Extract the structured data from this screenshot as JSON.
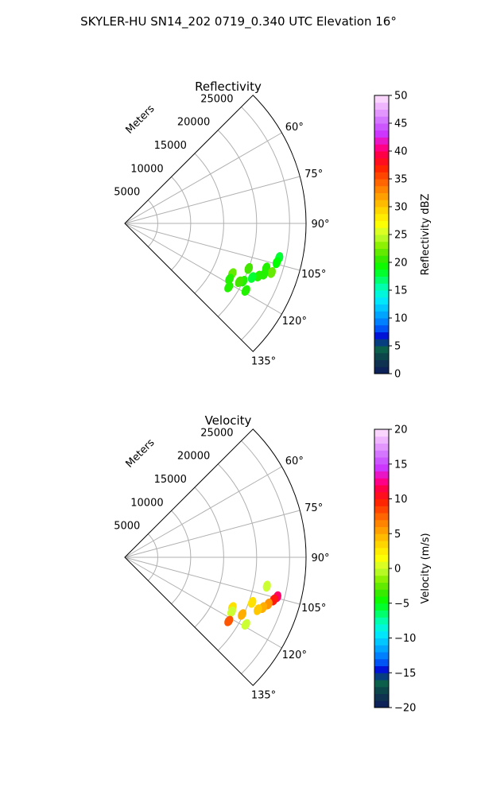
{
  "title": "SKYLER-HU  SN14_202  0719_0.340 UTC Elevation 16°",
  "chart_data": [
    {
      "type": "heatmap",
      "subtype": "polar-sector-ppi",
      "title": "Reflectivity",
      "range_unit_label": "Meters",
      "range_ticks": [
        5000,
        10000,
        15000,
        20000,
        25000
      ],
      "range_ticklabels": [
        "5000",
        "10000",
        "15000",
        "20000",
        "25000"
      ],
      "range_max": 27500,
      "angle_range_deg": [
        45,
        135
      ],
      "angle_ticks": [
        60,
        75,
        90,
        105,
        120,
        135
      ],
      "angle_ticklabels": [
        "60°",
        "75°",
        "90°",
        "105°",
        "120°",
        "135°"
      ],
      "grid": true,
      "colorbar": {
        "label": "Reflectivity dBZ",
        "min": 0,
        "max": 50,
        "ticks": [
          0,
          5,
          10,
          15,
          20,
          25,
          30,
          35,
          40,
          45,
          50
        ],
        "ticklabels": [
          "0",
          "5",
          "10",
          "15",
          "20",
          "25",
          "30",
          "35",
          "40",
          "45",
          "50"
        ]
      },
      "echoes": [
        {
          "angle": 102.5,
          "range": 24000,
          "value": 18
        },
        {
          "angle": 104.5,
          "range": 23800,
          "value": 19
        },
        {
          "angle": 107.5,
          "range": 22500,
          "value": 20
        },
        {
          "angle": 108.5,
          "range": 23500,
          "value": 22
        },
        {
          "angle": 110.0,
          "range": 22500,
          "value": 20
        },
        {
          "angle": 111.5,
          "range": 21800,
          "value": 20
        },
        {
          "angle": 110.0,
          "range": 20000,
          "value": 21
        },
        {
          "angle": 116.0,
          "range": 20000,
          "value": 20
        },
        {
          "angle": 115.0,
          "range": 18000,
          "value": 22
        },
        {
          "angle": 118.0,
          "range": 18000,
          "value": 20
        },
        {
          "angle": 117.0,
          "range": 19500,
          "value": 21
        },
        {
          "angle": 121.5,
          "range": 18500,
          "value": 20
        },
        {
          "angle": 119.0,
          "range": 21000,
          "value": 20
        },
        {
          "angle": 113.0,
          "range": 21000,
          "value": 18
        }
      ]
    },
    {
      "type": "heatmap",
      "subtype": "polar-sector-ppi",
      "title": "Velocity",
      "range_unit_label": "Meters",
      "range_ticks": [
        5000,
        10000,
        15000,
        20000,
        25000
      ],
      "range_ticklabels": [
        "5000",
        "10000",
        "15000",
        "20000",
        "25000"
      ],
      "range_max": 27500,
      "angle_range_deg": [
        45,
        135
      ],
      "angle_ticks": [
        60,
        75,
        90,
        105,
        120,
        135
      ],
      "angle_ticklabels": [
        "60°",
        "75°",
        "90°",
        "105°",
        "120°",
        "135°"
      ],
      "grid": true,
      "colorbar": {
        "label": "Velocity (m/s)",
        "min": -20,
        "max": 20,
        "ticks": [
          -20,
          -15,
          -10,
          -5,
          0,
          5,
          10,
          15,
          20
        ],
        "ticklabels": [
          "−20",
          "−15",
          "−10",
          "−5",
          "0",
          "5",
          "10",
          "15",
          "20"
        ]
      },
      "echoes": [
        {
          "angle": 101.5,
          "range": 22000,
          "value": 0
        },
        {
          "angle": 104.5,
          "range": 23900,
          "value": 12
        },
        {
          "angle": 106.0,
          "range": 23500,
          "value": 10
        },
        {
          "angle": 108.0,
          "range": 22900,
          "value": 6
        },
        {
          "angle": 110.0,
          "range": 22300,
          "value": 5
        },
        {
          "angle": 111.5,
          "range": 21700,
          "value": 4
        },
        {
          "angle": 115.0,
          "range": 18000,
          "value": 3
        },
        {
          "angle": 117.0,
          "range": 18200,
          "value": 0
        },
        {
          "angle": 116.0,
          "range": 19800,
          "value": 5
        },
        {
          "angle": 119.0,
          "range": 21000,
          "value": 0
        },
        {
          "angle": 121.5,
          "range": 18500,
          "value": 8
        },
        {
          "angle": 109.5,
          "range": 20500,
          "value": 3
        }
      ]
    }
  ]
}
